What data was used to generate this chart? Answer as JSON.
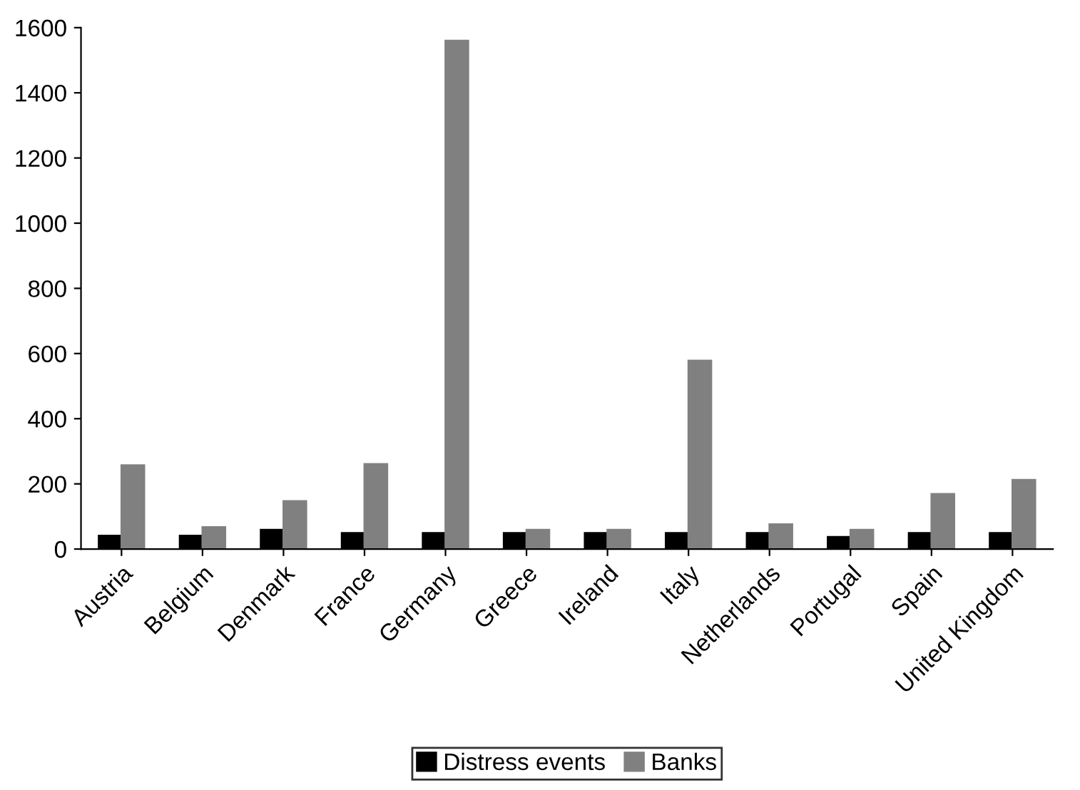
{
  "chart_data": {
    "type": "bar",
    "categories": [
      "Austria",
      "Belgium",
      "Denmark",
      "France",
      "Germany",
      "Greece",
      "Ireland",
      "Italy",
      "Netherlands",
      "Portugal",
      "Spain",
      "United Kingdom"
    ],
    "series": [
      {
        "name": "Distress events",
        "color": "#000000",
        "values": [
          41,
          41,
          59,
          49,
          49,
          49,
          49,
          49,
          49,
          37,
          49,
          49
        ]
      },
      {
        "name": "Banks",
        "color": "#808080",
        "values": [
          257,
          67,
          147,
          261,
          1560,
          59,
          59,
          578,
          76,
          59,
          169,
          212
        ]
      }
    ],
    "ylim": [
      0,
      1600
    ],
    "yticks": [
      0,
      200,
      400,
      600,
      800,
      1000,
      1200,
      1400,
      1600
    ],
    "grid": false,
    "legend": "bottom"
  }
}
